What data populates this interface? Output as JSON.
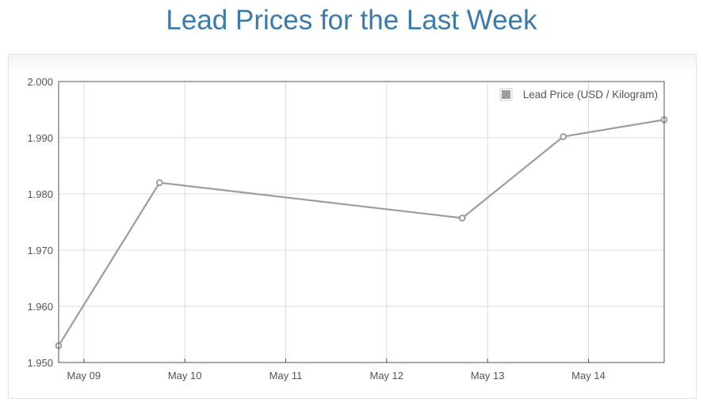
{
  "page": {
    "title": "Lead Prices for the Last Week"
  },
  "colors": {
    "title": "#3a7bab",
    "series": "#9d9d9d",
    "grid": "#dcdcdc",
    "frame": "#545454",
    "text": "#545454"
  },
  "chart_data": {
    "type": "line",
    "title": "Lead Prices for the Last Week",
    "xlabel": "",
    "ylabel": "",
    "x_type": "date",
    "x_ticks": [
      "May 09",
      "May 10",
      "May 11",
      "May 12",
      "May 13",
      "May 14"
    ],
    "xlim": [
      "2016-05-08 18:00",
      "2016-05-14 18:00"
    ],
    "ylim": [
      1.95,
      2.0
    ],
    "y_ticks": [
      "1.950",
      "1.960",
      "1.970",
      "1.980",
      "1.990",
      "2.000"
    ],
    "grid": true,
    "legend": {
      "placement": "top-right",
      "entries": [
        "Lead Price (USD / Kilogram)"
      ]
    },
    "series": [
      {
        "name": "Lead Price (USD / Kilogram)",
        "color": "#9d9d9d",
        "x": [
          "2016-05-08 18:00",
          "2016-05-09 18:00",
          "2016-05-12 18:00",
          "2016-05-13 18:00",
          "2016-05-14 18:00"
        ],
        "y": [
          1.953,
          1.982,
          1.9757,
          1.9902,
          1.9932
        ]
      }
    ]
  }
}
